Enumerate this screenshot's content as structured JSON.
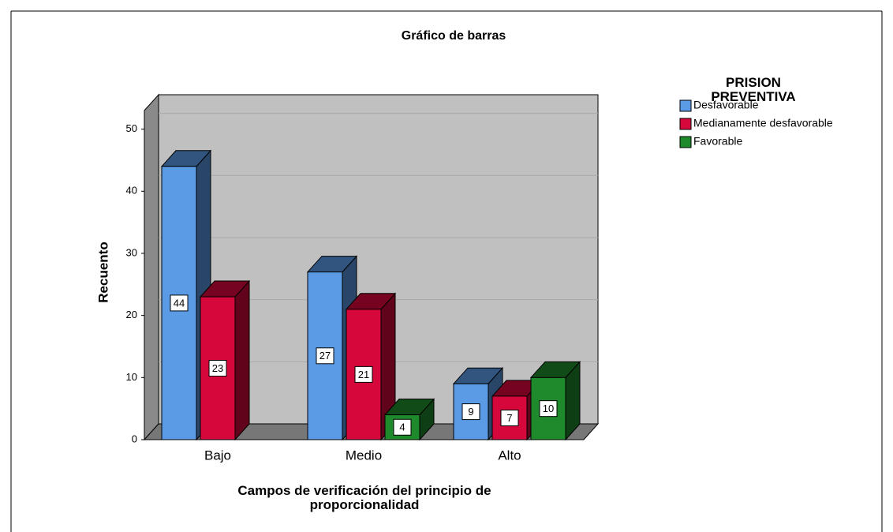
{
  "chart_data": {
    "type": "bar3d",
    "title": "Gráfico de barras",
    "x_label": "Campos de verificación del principio de proporcionalidad",
    "y_label": "Recuento",
    "legend_title": "PRISION PREVENTIVA",
    "legend": "right",
    "categories": [
      "Bajo",
      "Medio",
      "Alto"
    ],
    "series": [
      {
        "name": "Desfavorable",
        "color": "#5b9be6",
        "values": [
          44,
          27,
          9
        ]
      },
      {
        "name": "Medianamente desfavorable",
        "color": "#d6073b",
        "values": [
          23,
          21,
          7
        ]
      },
      {
        "name": "Favorable",
        "color": "#1f8a2b",
        "values": [
          null,
          4,
          10
        ]
      }
    ],
    "ylim": [
      0,
      53
    ],
    "yticks": [
      0,
      10,
      20,
      30,
      40,
      50
    ],
    "grid": true
  }
}
